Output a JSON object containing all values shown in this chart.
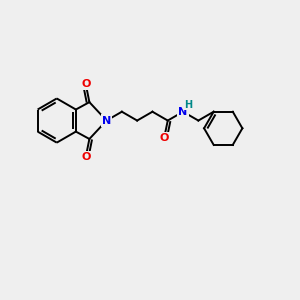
{
  "bg_color": "#efefef",
  "atom_colors": {
    "C": "#000000",
    "N": "#0000ee",
    "O": "#ee0000",
    "H": "#008888"
  },
  "bond_color": "#000000",
  "line_width": 1.4,
  "figsize": [
    3.0,
    3.0
  ],
  "dpi": 100,
  "xlim": [
    0,
    12
  ],
  "ylim": [
    0,
    12
  ]
}
